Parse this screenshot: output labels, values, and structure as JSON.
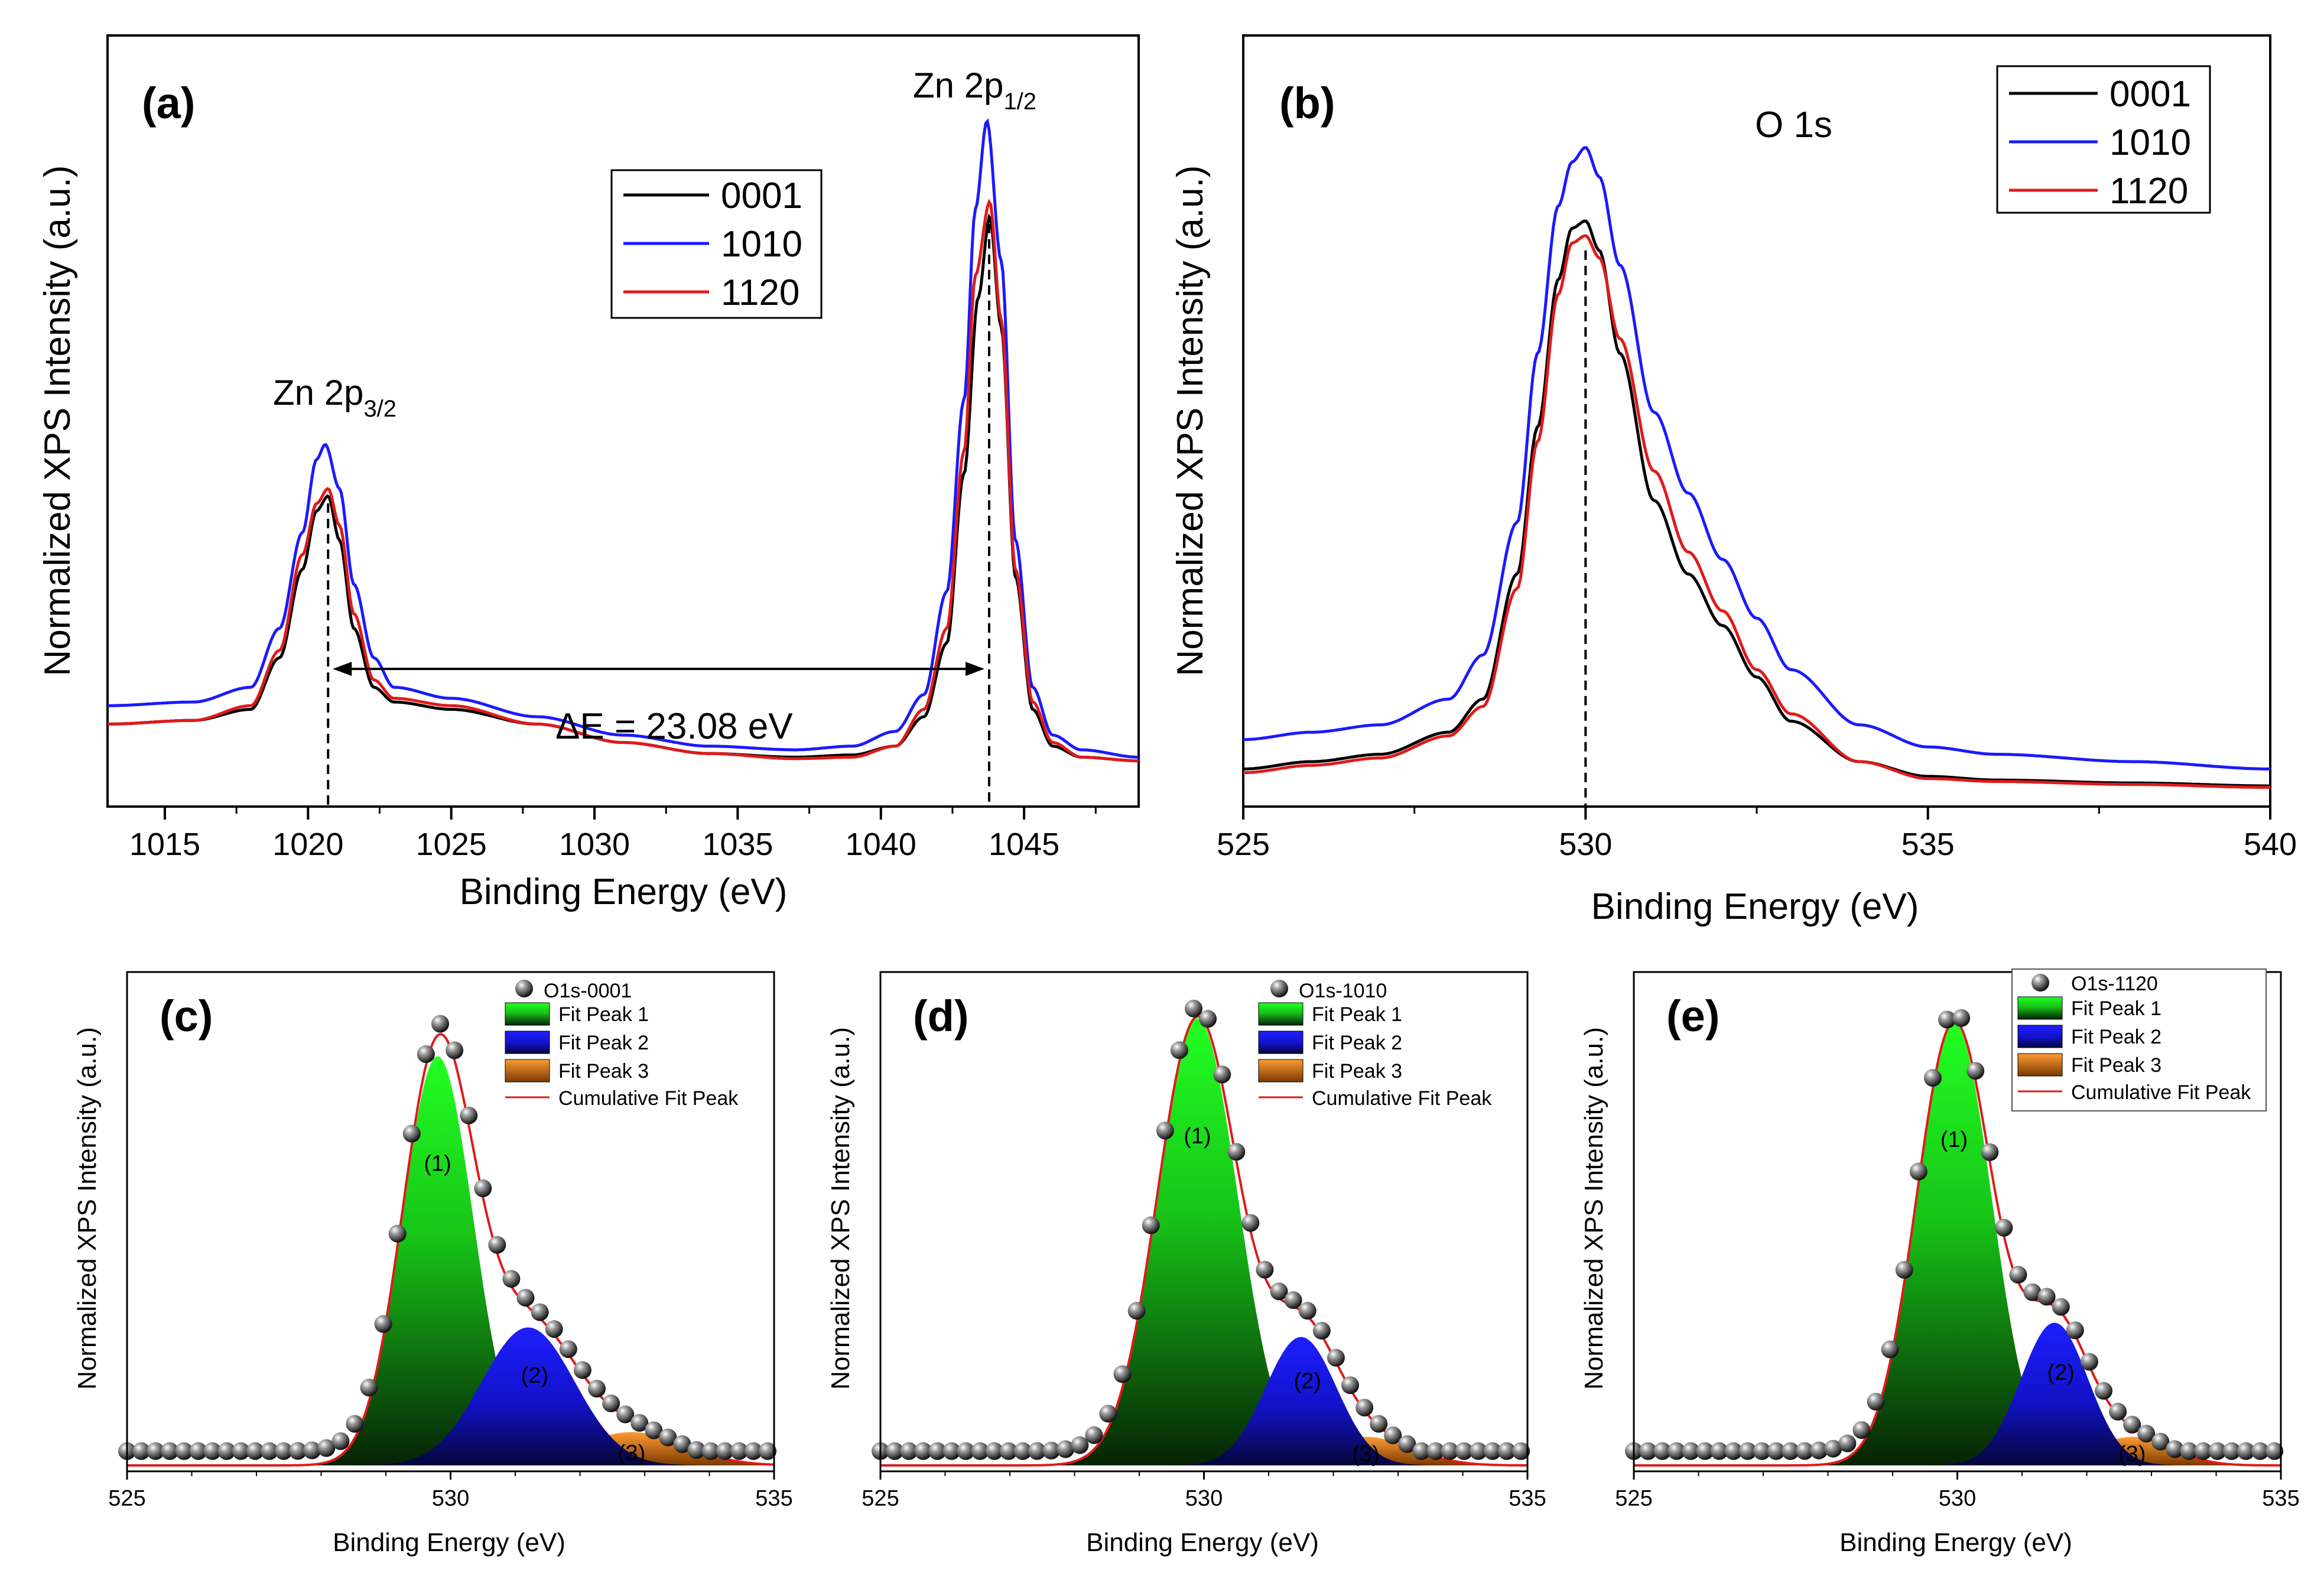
{
  "figure": {
    "panels": {
      "a": {
        "label": "(a)",
        "xlabel": "Binding Energy (eV)",
        "ylabel": "Normalized XPS Intensity (a.u.)",
        "peak_left": {
          "base": "Zn 2p",
          "sub": "3/2"
        },
        "peak_right": {
          "base": "Zn 2p",
          "sub": "1/2"
        },
        "delta": "ΔE = 23.08 eV"
      },
      "b": {
        "label": "(b)",
        "xlabel": "Binding Energy (eV)",
        "ylabel": "Normalized XPS Intensity (a.u.)",
        "peak": "O 1s"
      },
      "c": {
        "label": "(c)",
        "xlabel": "Binding Energy (eV)",
        "ylabel": "Normalized XPS Intensity (a.u.)",
        "data_legend": "O1s-0001"
      },
      "d": {
        "label": "(d)",
        "xlabel": "Binding Energy (eV)",
        "ylabel": "Normalized XPS Intensity (a.u.)",
        "data_legend": "O1s-1010"
      },
      "e": {
        "label": "(e)",
        "xlabel": "Binding Energy (eV)",
        "ylabel": "Normalized XPS Intensity (a.u.)",
        "data_legend": "O1s-1120"
      }
    },
    "fit_legend": [
      "Fit Peak 1",
      "Fit Peak 2",
      "Fit Peak 3",
      "Cumulative Fit Peak"
    ],
    "peak_labels": [
      "(1)",
      "(2)",
      "(3)"
    ]
  },
  "chart_data": [
    {
      "panel": "a",
      "type": "line",
      "xlim": [
        1013,
        1049
      ],
      "xticks": [
        1015,
        1020,
        1025,
        1030,
        1035,
        1040,
        1045
      ],
      "ylim": [
        0,
        1
      ],
      "dashed_markers_x": [
        1020.7,
        1043.78
      ],
      "delta_E": 23.08,
      "colors": {
        "0001": "#000000",
        "1010": "#1a1aff",
        "1120": "#e01a1a"
      },
      "series": [
        {
          "name": "0001",
          "color": "#000000",
          "x": [
            1013,
            1016,
            1018,
            1019,
            1019.8,
            1020.3,
            1020.7,
            1021.1,
            1021.6,
            1022.3,
            1023,
            1025,
            1028,
            1031,
            1034,
            1037,
            1039,
            1040.5,
            1041.5,
            1042.3,
            1042.9,
            1043.4,
            1043.8,
            1044.2,
            1044.7,
            1045.3,
            1046,
            1047,
            1049
          ],
          "y": [
            0.08,
            0.085,
            0.1,
            0.17,
            0.29,
            0.37,
            0.39,
            0.33,
            0.21,
            0.13,
            0.11,
            0.1,
            0.08,
            0.055,
            0.04,
            0.035,
            0.038,
            0.05,
            0.09,
            0.19,
            0.42,
            0.66,
            0.77,
            0.62,
            0.28,
            0.1,
            0.05,
            0.035,
            0.03
          ]
        },
        {
          "name": "1010",
          "color": "#1a1aff",
          "x": [
            1013,
            1016,
            1018,
            1019,
            1019.8,
            1020.3,
            1020.6,
            1021.1,
            1021.6,
            1022.3,
            1023,
            1025,
            1028,
            1031,
            1034,
            1037,
            1039,
            1040.5,
            1041.5,
            1042.3,
            1042.9,
            1043.3,
            1043.7,
            1044.2,
            1044.7,
            1045.3,
            1046,
            1047,
            1049
          ],
          "y": [
            0.105,
            0.11,
            0.13,
            0.21,
            0.34,
            0.44,
            0.46,
            0.4,
            0.27,
            0.17,
            0.13,
            0.115,
            0.09,
            0.065,
            0.05,
            0.045,
            0.05,
            0.07,
            0.12,
            0.26,
            0.52,
            0.78,
            0.9,
            0.71,
            0.33,
            0.13,
            0.065,
            0.045,
            0.035
          ]
        },
        {
          "name": "1120",
          "color": "#e01a1a",
          "x": [
            1013,
            1016,
            1018,
            1019,
            1019.8,
            1020.3,
            1020.7,
            1021.1,
            1021.6,
            1022.3,
            1023,
            1025,
            1028,
            1031,
            1034,
            1037,
            1039,
            1040.5,
            1041.5,
            1042.3,
            1042.9,
            1043.3,
            1043.8,
            1044.2,
            1044.7,
            1045.3,
            1046,
            1047,
            1049
          ],
          "y": [
            0.08,
            0.085,
            0.105,
            0.18,
            0.31,
            0.38,
            0.4,
            0.35,
            0.23,
            0.14,
            0.115,
            0.105,
            0.08,
            0.055,
            0.04,
            0.033,
            0.035,
            0.05,
            0.1,
            0.21,
            0.45,
            0.69,
            0.79,
            0.63,
            0.29,
            0.11,
            0.055,
            0.035,
            0.03
          ]
        }
      ]
    },
    {
      "panel": "b",
      "type": "line",
      "xlim": [
        525,
        540
      ],
      "xticks": [
        525,
        530,
        535,
        540
      ],
      "ylim": [
        0,
        1
      ],
      "dashed_marker_x": 530,
      "series": [
        {
          "name": "0001",
          "color": "#000000",
          "x": [
            525,
            526,
            527,
            528,
            528.5,
            529,
            529.3,
            529.6,
            529.8,
            530,
            530.2,
            530.5,
            531,
            531.5,
            532,
            532.5,
            533,
            534,
            535,
            536,
            538,
            540
          ],
          "y": [
            0.035,
            0.045,
            0.055,
            0.085,
            0.13,
            0.3,
            0.5,
            0.7,
            0.77,
            0.78,
            0.74,
            0.6,
            0.4,
            0.3,
            0.23,
            0.16,
            0.1,
            0.045,
            0.025,
            0.02,
            0.016,
            0.012
          ]
        },
        {
          "name": "1010",
          "color": "#1a1aff",
          "x": [
            525,
            526,
            527,
            528,
            528.5,
            529,
            529.3,
            529.6,
            529.8,
            530,
            530.2,
            530.5,
            531,
            531.5,
            532,
            532.5,
            533,
            534,
            535,
            536,
            538,
            540
          ],
          "y": [
            0.075,
            0.085,
            0.095,
            0.13,
            0.19,
            0.37,
            0.6,
            0.8,
            0.86,
            0.88,
            0.84,
            0.72,
            0.52,
            0.41,
            0.32,
            0.24,
            0.17,
            0.095,
            0.065,
            0.055,
            0.045,
            0.035
          ]
        },
        {
          "name": "1120",
          "color": "#e01a1a",
          "x": [
            525,
            526,
            527,
            528,
            528.5,
            529,
            529.3,
            529.6,
            529.8,
            530,
            530.2,
            530.5,
            531,
            531.5,
            532,
            532.5,
            533,
            534,
            535,
            536,
            538,
            540
          ],
          "y": [
            0.03,
            0.04,
            0.05,
            0.08,
            0.12,
            0.28,
            0.48,
            0.68,
            0.75,
            0.76,
            0.73,
            0.62,
            0.44,
            0.33,
            0.25,
            0.17,
            0.11,
            0.045,
            0.022,
            0.018,
            0.014,
            0.01
          ]
        }
      ]
    },
    {
      "panel": "c",
      "type": "area",
      "xlim": [
        525,
        535
      ],
      "xticks": [
        525,
        530,
        535
      ],
      "ylim": [
        0,
        1
      ],
      "baseline": 0.03,
      "peaks": [
        {
          "name": "Fit Peak 1",
          "center": 529.8,
          "height": 0.86,
          "width": 0.55
        },
        {
          "name": "Fit Peak 2",
          "center": 531.2,
          "height": 0.29,
          "width": 0.72
        },
        {
          "name": "Fit Peak 3",
          "center": 532.8,
          "height": 0.07,
          "width": 0.8
        }
      ],
      "points_x_step": 0.22
    },
    {
      "panel": "d",
      "type": "area",
      "xlim": [
        525,
        535
      ],
      "xticks": [
        525,
        530,
        535
      ],
      "ylim": [
        0,
        1
      ],
      "baseline": 0.03,
      "peaks": [
        {
          "name": "Fit Peak 1",
          "center": 529.9,
          "height": 0.94,
          "width": 0.62
        },
        {
          "name": "Fit Peak 2",
          "center": 531.5,
          "height": 0.27,
          "width": 0.55
        },
        {
          "name": "Fit Peak 3",
          "center": 532.5,
          "height": 0.06,
          "width": 0.7
        }
      ],
      "points_x_step": 0.22
    },
    {
      "panel": "e",
      "type": "area",
      "xlim": [
        525,
        535
      ],
      "xticks": [
        525,
        530,
        535
      ],
      "ylim": [
        0,
        1
      ],
      "baseline": 0.03,
      "peaks": [
        {
          "name": "Fit Peak 1",
          "center": 529.95,
          "height": 0.93,
          "width": 0.58
        },
        {
          "name": "Fit Peak 2",
          "center": 531.5,
          "height": 0.3,
          "width": 0.52
        },
        {
          "name": "Fit Peak 3",
          "center": 532.7,
          "height": 0.06,
          "width": 0.6
        }
      ],
      "points_x_step": 0.22
    }
  ]
}
